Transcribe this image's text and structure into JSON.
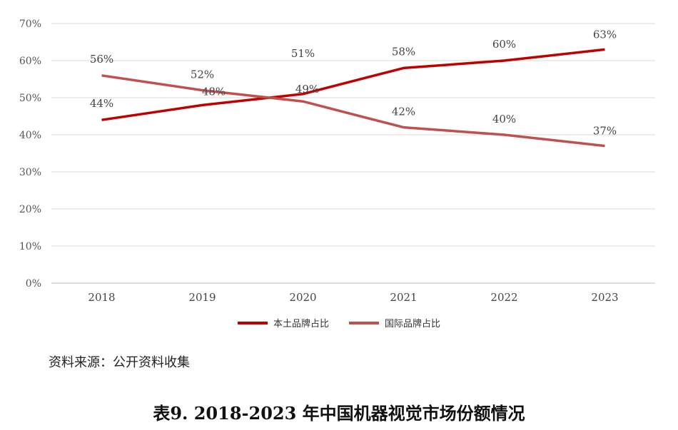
{
  "chart_data": {
    "type": "line",
    "categories": [
      "2018",
      "2019",
      "2020",
      "2021",
      "2022",
      "2023"
    ],
    "series": [
      {
        "name": "本土品牌占比",
        "values": [
          44,
          48,
          51,
          58,
          60,
          63
        ],
        "labels": [
          "44%",
          "48%",
          "51%",
          "58%",
          "60%",
          "63%"
        ],
        "color": "#c00000"
      },
      {
        "name": "国际品牌占比",
        "values": [
          56,
          52,
          49,
          42,
          40,
          37
        ],
        "labels": [
          "56%",
          "52%",
          "49%",
          "42%",
          "40%",
          "37%"
        ],
        "color": "#c0504d"
      }
    ],
    "yticks": [
      "0%",
      "10%",
      "20%",
      "30%",
      "40%",
      "50%",
      "60%",
      "70%"
    ],
    "ylim": [
      0,
      70
    ],
    "grid": true,
    "legend_position": "bottom"
  },
  "source_text": "资料来源：公开资料收集",
  "caption": "表9.   2018-2023 年中国机器视觉市场份额情况"
}
